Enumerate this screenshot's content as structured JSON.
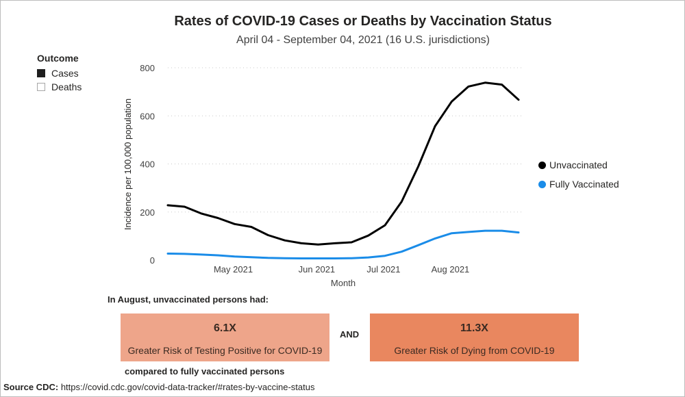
{
  "chart_data": {
    "type": "line",
    "title": "Rates of COVID-19 Cases or Deaths by Vaccination Status",
    "subtitle": "April 04 - September 04, 2021 (16 U.S. jurisdictions)",
    "xlabel": "Month",
    "ylabel": "Incidence per 100,000 population",
    "ylim": [
      0,
      800
    ],
    "yticks": [
      0,
      200,
      400,
      600,
      800
    ],
    "xtick_labels": [
      "May 2021",
      "Jun 2021",
      "Jul 2021",
      "Aug 2021"
    ],
    "x": [
      "Apr 04",
      "Apr 11",
      "Apr 18",
      "Apr 25",
      "May 02",
      "May 09",
      "May 16",
      "May 23",
      "May 30",
      "Jun 06",
      "Jun 13",
      "Jun 20",
      "Jun 27",
      "Jul 04",
      "Jul 11",
      "Jul 18",
      "Jul 25",
      "Aug 01",
      "Aug 08",
      "Aug 15",
      "Aug 22",
      "Aug 29"
    ],
    "series": [
      {
        "name": "Unvaccinated",
        "color": "#000000",
        "values": [
          228,
          222,
          194,
          175,
          150,
          138,
          104,
          82,
          70,
          65,
          70,
          74,
          102,
          145,
          243,
          390,
          557,
          660,
          722,
          738,
          730,
          667
        ]
      },
      {
        "name": "Fully Vaccinated",
        "color": "#1a8ce8",
        "values": [
          27,
          26,
          23,
          20,
          15,
          12,
          9,
          8,
          7,
          7,
          7,
          8,
          11,
          18,
          35,
          62,
          90,
          112,
          117,
          122,
          122,
          115
        ]
      }
    ],
    "legend_position": "right"
  },
  "outcome_legend": {
    "title": "Outcome",
    "items": [
      {
        "label": "Cases",
        "selected": true
      },
      {
        "label": "Deaths",
        "selected": false
      }
    ]
  },
  "summary": {
    "intro": "In August, unvaccinated persons had:",
    "cases_ratio": "6.1X",
    "cases_text": "Greater Risk of Testing Positive for COVID-19",
    "and": "AND",
    "deaths_ratio": "11.3X",
    "deaths_text": "Greater Risk of Dying from COVID-19",
    "compared": "compared to fully vaccinated persons"
  },
  "source": {
    "label": "Source CDC:",
    "url": "https://covid.cdc.gov/covid-data-tracker/#rates-by-vaccine-status"
  }
}
